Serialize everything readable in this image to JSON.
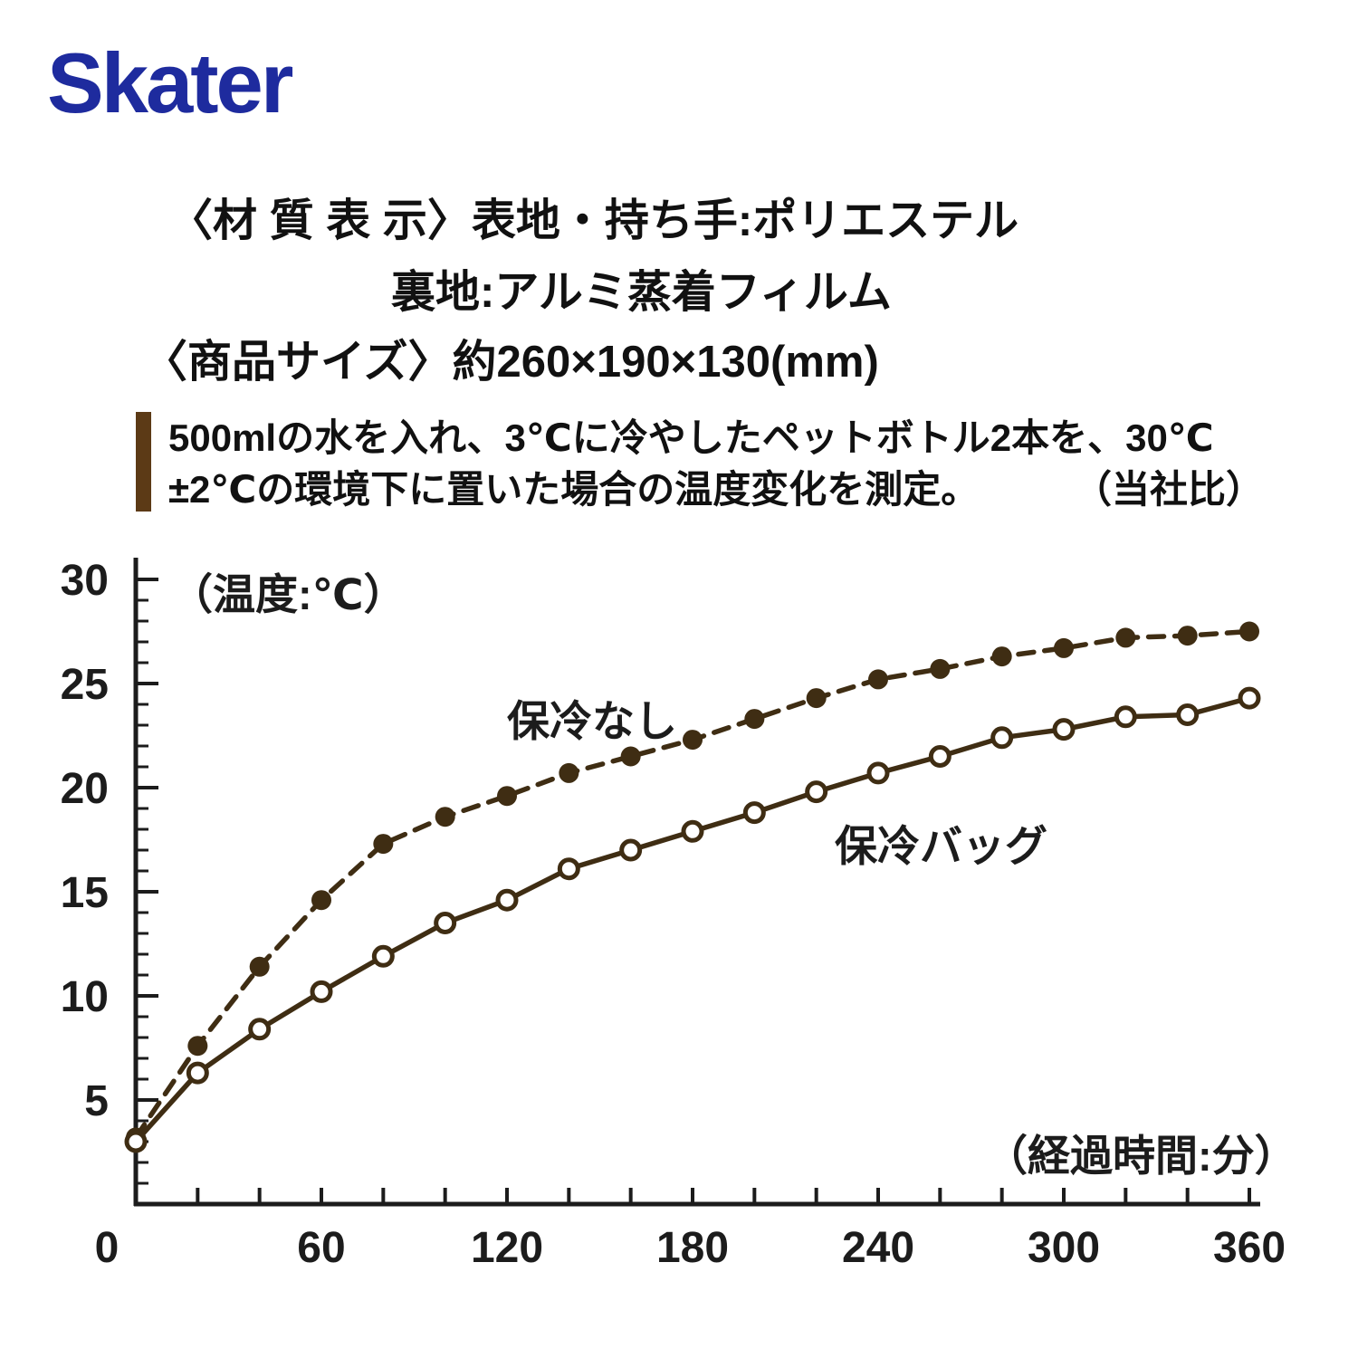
{
  "brand": {
    "logo": "Skater",
    "logo_color": "#1e2b9e"
  },
  "specs": {
    "material_line1": "〈材 質 表 示〉表地・持ち手:ポリエステル",
    "material_line2": "裏地:アルミ蒸着フィルム",
    "size_line": "〈商品サイズ〉約260×190×130(mm)",
    "test_note_line1": "500mlの水を入れ、3℃に冷やしたペットボトル2本を、30℃",
    "test_note_line2": "±2℃の環境下に置いた場合の温度変化を測定。",
    "test_note_ref": "（当社比）"
  },
  "chart_data": {
    "type": "line",
    "title": "",
    "ylabel": "（温度:℃）",
    "xlabel": "（経過時間:分）",
    "xlim": [
      0,
      360
    ],
    "ylim": [
      0,
      30
    ],
    "xticks": [
      0,
      60,
      120,
      180,
      240,
      300,
      360
    ],
    "yticks": [
      5,
      10,
      15,
      20,
      25,
      30
    ],
    "x_minor_tick_step": 20,
    "y_minor_tick_step": 1,
    "grid": false,
    "legend_position": "inline-annotations",
    "line_color": "#3f2d13",
    "axis_color": "#1c1c1c",
    "x": [
      0,
      20,
      40,
      60,
      80,
      100,
      120,
      140,
      160,
      180,
      200,
      220,
      240,
      260,
      280,
      300,
      320,
      340,
      360
    ],
    "series": [
      {
        "name": "保冷なし",
        "line": "dashed",
        "marker": "filled",
        "values": [
          3.2,
          7.6,
          11.4,
          14.6,
          17.3,
          18.6,
          19.6,
          20.7,
          21.5,
          22.3,
          23.3,
          24.3,
          25.2,
          25.7,
          26.3,
          26.7,
          27.2,
          27.3,
          27.5
        ]
      },
      {
        "name": "保冷バッグ",
        "line": "solid",
        "marker": "open",
        "values": [
          3.0,
          6.3,
          8.4,
          10.2,
          11.9,
          13.5,
          14.6,
          16.1,
          17.0,
          17.9,
          18.8,
          19.8,
          20.7,
          21.5,
          22.4,
          22.8,
          23.4,
          23.5,
          24.3
        ]
      }
    ]
  }
}
